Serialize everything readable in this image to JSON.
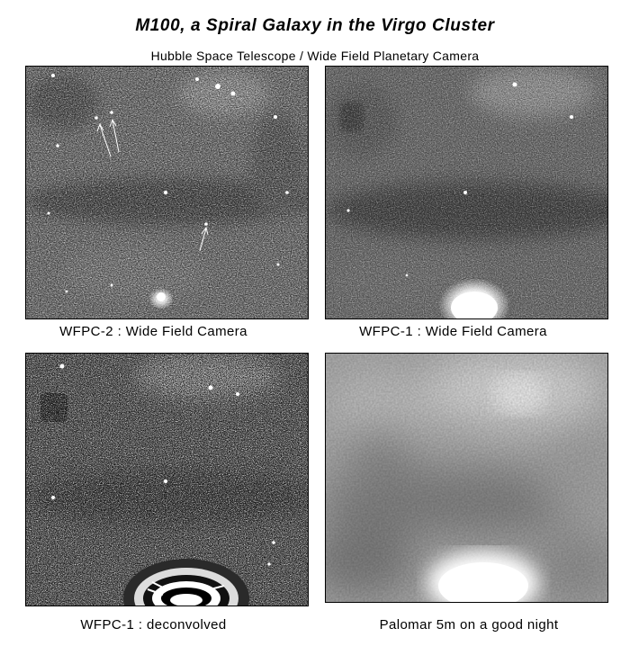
{
  "title": "M100, a Spiral Galaxy in the Virgo Cluster",
  "subtitle": "Hubble Space Telescope  /  Wide Field Planetary Camera",
  "panels": [
    {
      "caption": "WFPC-2 : Wide Field Camera"
    },
    {
      "caption": "WFPC-1 : Wide Field Camera"
    },
    {
      "caption": "WFPC-1 : deconvolved"
    },
    {
      "caption": "Palomar 5m on a good night"
    }
  ]
}
